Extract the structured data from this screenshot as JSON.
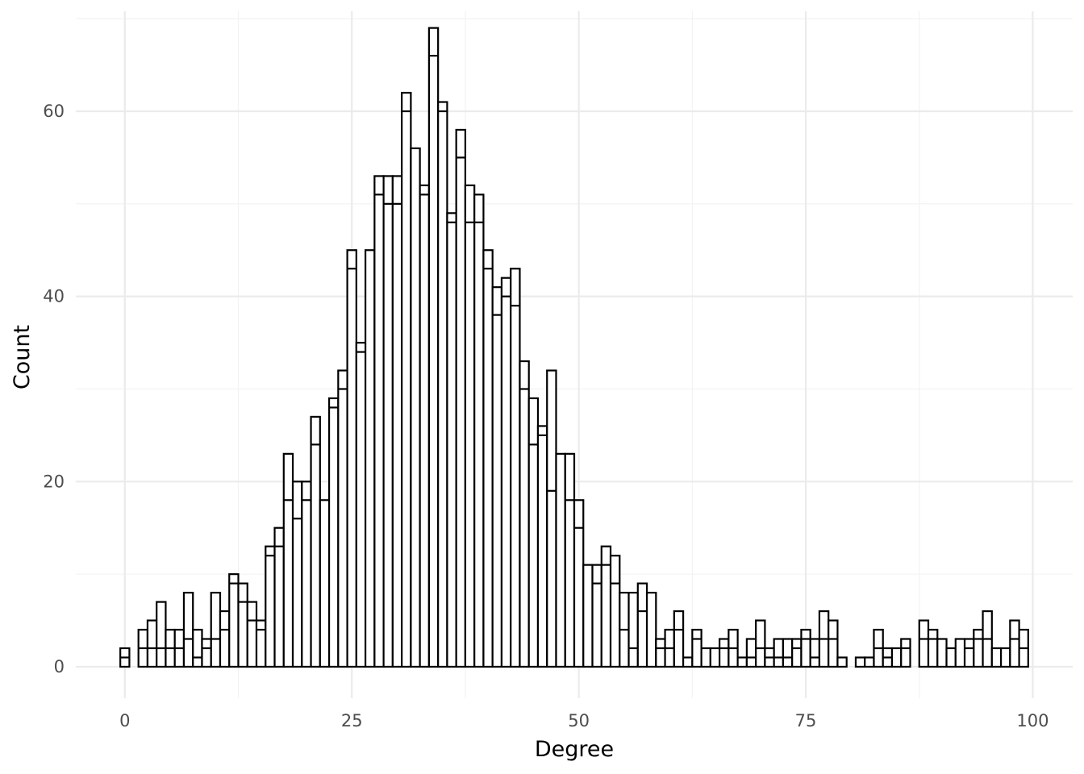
{
  "chart_data": {
    "type": "bar",
    "subtype": "histogram",
    "title": "",
    "xlabel": "Degree",
    "ylabel": "Count",
    "xlim": [
      -5.4,
      104.4
    ],
    "ylim": [
      -3.4,
      70.8
    ],
    "x_ticks": [
      0,
      25,
      50,
      75,
      100
    ],
    "x_tick_labels": [
      "0",
      "25",
      "50",
      "75",
      "100"
    ],
    "y_ticks": [
      0,
      20,
      40,
      60
    ],
    "y_tick_labels": [
      "0",
      "20",
      "40",
      "60"
    ],
    "grid": true,
    "legend": "none",
    "bin_width": 1,
    "x": [
      0,
      2,
      3,
      4,
      5,
      6,
      7,
      8,
      9,
      10,
      11,
      12,
      13,
      14,
      15,
      16,
      17,
      18,
      19,
      20,
      21,
      22,
      23,
      24,
      25,
      26,
      27,
      28,
      29,
      30,
      31,
      32,
      33,
      34,
      35,
      36,
      37,
      38,
      39,
      40,
      41,
      42,
      43,
      44,
      45,
      46,
      47,
      48,
      49,
      50,
      51,
      52,
      53,
      54,
      55,
      56,
      57,
      58,
      59,
      60,
      61,
      62,
      63,
      64,
      65,
      66,
      67,
      68,
      69,
      70,
      71,
      72,
      73,
      74,
      75,
      76,
      77,
      78,
      79,
      81,
      82,
      83,
      84,
      85,
      86,
      88,
      89,
      90,
      91,
      92,
      93,
      94,
      95,
      96,
      97,
      98,
      99
    ],
    "series": [
      {
        "values": [
          1,
          2,
          2,
          2,
          2,
          2,
          3,
          1,
          2,
          3,
          4,
          9,
          7,
          5,
          4,
          12,
          13,
          18,
          16,
          18,
          24,
          18,
          28,
          30,
          43,
          34,
          45,
          51,
          50,
          50,
          60,
          56,
          51,
          66,
          60,
          48,
          55,
          48,
          48,
          43,
          38,
          40,
          39,
          30,
          24,
          25,
          19,
          23,
          18,
          15,
          11,
          9,
          11,
          9,
          4,
          2,
          6,
          8,
          2,
          2,
          4,
          1,
          3,
          2,
          2,
          2,
          2,
          1,
          1,
          2,
          1,
          1,
          1,
          2,
          3,
          1,
          3,
          3,
          1,
          1,
          1,
          2,
          1,
          2,
          2,
          3,
          3,
          3,
          2,
          3,
          2,
          3,
          3,
          2,
          2,
          3,
          2
        ]
      },
      {
        "values": [
          1,
          2,
          3,
          5,
          2,
          2,
          5,
          3,
          1,
          5,
          2,
          1,
          2,
          2,
          1,
          1,
          2,
          5,
          4,
          2,
          3,
          0,
          1,
          2,
          2,
          1,
          0,
          2,
          3,
          3,
          2,
          0,
          1,
          3,
          1,
          1,
          3,
          4,
          3,
          2,
          3,
          2,
          4,
          3,
          5,
          1,
          13,
          0,
          5,
          3,
          0,
          2,
          2,
          3,
          4,
          6,
          3,
          0,
          1,
          2,
          2,
          0,
          1,
          0,
          0,
          1,
          2,
          0,
          2,
          3,
          1,
          2,
          2,
          1,
          1,
          2,
          3,
          2,
          0,
          0,
          0,
          2,
          1,
          0,
          1,
          2,
          1,
          0,
          0,
          0,
          1,
          1,
          3,
          0,
          0,
          2,
          2
        ]
      }
    ]
  }
}
